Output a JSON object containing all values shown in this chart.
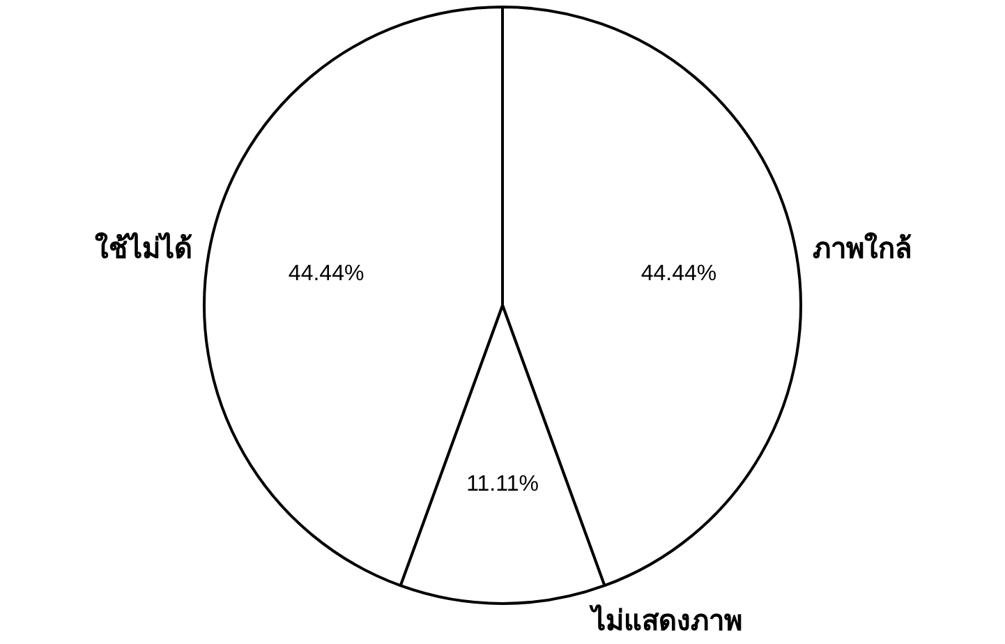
{
  "chart_data": {
    "type": "pie",
    "categories": [
      "ภาพใกล้",
      "ไม่แสดงภาพ",
      "ใช้ไม่ได้"
    ],
    "values": [
      44.44,
      11.11,
      44.44
    ],
    "value_labels": [
      "44.44%",
      "11.11%",
      "44.44%"
    ],
    "colors": [
      "#ffffff",
      "#ffffff",
      "#ffffff"
    ],
    "legend": false
  }
}
